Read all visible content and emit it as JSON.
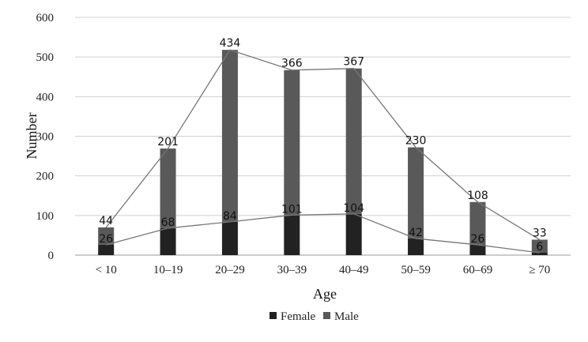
{
  "chart_data": {
    "type": "bar",
    "stacked": true,
    "categories": [
      "< 10",
      "10–19",
      "20–29",
      "30–39",
      "40–49",
      "50–59",
      "60–69",
      "≥ 70"
    ],
    "series": [
      {
        "name": "Female",
        "values": [
          26,
          68,
          84,
          101,
          104,
          42,
          26,
          6
        ],
        "color": "#222222"
      },
      {
        "name": "Male",
        "values": [
          44,
          201,
          434,
          366,
          367,
          230,
          108,
          33
        ],
        "color": "#595959"
      }
    ],
    "xlabel": "Age",
    "ylabel": "Number",
    "ylim": [
      0,
      600
    ],
    "yticks": [
      0,
      100,
      200,
      300,
      400,
      500,
      600
    ],
    "grid": true,
    "legend": "bottom",
    "line_overlay": "connects top of male stack and top of female segment",
    "line_color": "#777777"
  }
}
